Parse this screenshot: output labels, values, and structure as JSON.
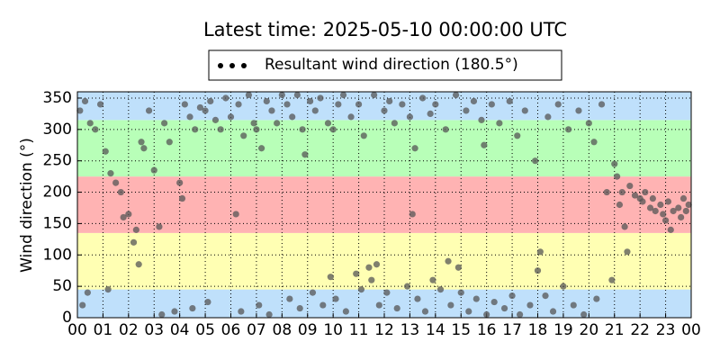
{
  "chart_data": {
    "type": "scatter",
    "title": "Latest time: 2025-05-10 00:00:00 UTC",
    "y_label": "Wind direction (°)",
    "xlim": [
      0,
      24
    ],
    "ylim": [
      0,
      360
    ],
    "xticks": [
      {
        "value": 0,
        "label": "00"
      },
      {
        "value": 1,
        "label": "01"
      },
      {
        "value": 2,
        "label": "02"
      },
      {
        "value": 3,
        "label": "03"
      },
      {
        "value": 4,
        "label": "04"
      },
      {
        "value": 5,
        "label": "05"
      },
      {
        "value": 6,
        "label": "06"
      },
      {
        "value": 7,
        "label": "07"
      },
      {
        "value": 8,
        "label": "08"
      },
      {
        "value": 9,
        "label": "09"
      },
      {
        "value": 10,
        "label": "10"
      },
      {
        "value": 11,
        "label": "11"
      },
      {
        "value": 12,
        "label": "12"
      },
      {
        "value": 13,
        "label": "13"
      },
      {
        "value": 14,
        "label": "14"
      },
      {
        "value": 15,
        "label": "15"
      },
      {
        "value": 16,
        "label": "16"
      },
      {
        "value": 17,
        "label": "17"
      },
      {
        "value": 18,
        "label": "18"
      },
      {
        "value": 19,
        "label": "19"
      },
      {
        "value": 20,
        "label": "20"
      },
      {
        "value": 21,
        "label": "21"
      },
      {
        "value": 22,
        "label": "22"
      },
      {
        "value": 23,
        "label": "23"
      },
      {
        "value": 24,
        "label": "00"
      }
    ],
    "yticks": [
      0,
      50,
      100,
      150,
      200,
      250,
      300,
      350
    ],
    "grid": true,
    "legend": "top",
    "bands": [
      {
        "range": [
          0,
          45
        ],
        "color": "#bfe0fb"
      },
      {
        "range": [
          45,
          135
        ],
        "color": "#ffffb3"
      },
      {
        "range": [
          135,
          225
        ],
        "color": "#ffb3b3"
      },
      {
        "range": [
          225,
          315
        ],
        "color": "#b8ffb8"
      },
      {
        "range": [
          315,
          360
        ],
        "color": "#bfe0fb"
      }
    ],
    "series": [
      {
        "name": "Resultant wind direction (180.5°)",
        "color": "#555555",
        "x": [
          0.1,
          0.3,
          0.5,
          0.2,
          0.4,
          0.7,
          0.9,
          1.1,
          1.3,
          1.5,
          1.2,
          1.7,
          1.8,
          2.0,
          2.2,
          2.3,
          2.5,
          2.6,
          2.4,
          2.8,
          3.0,
          3.2,
          3.4,
          3.3,
          3.6,
          3.8,
          4.0,
          4.1,
          4.2,
          4.4,
          4.6,
          4.8,
          4.5,
          5.0,
          5.2,
          5.4,
          5.1,
          5.6,
          5.8,
          6.0,
          6.2,
          6.3,
          6.5,
          6.4,
          6.7,
          6.9,
          7.0,
          7.2,
          7.1,
          7.4,
          7.6,
          7.8,
          7.5,
          8.0,
          8.2,
          8.3,
          8.4,
          8.6,
          8.8,
          8.7,
          8.9,
          9.1,
          9.3,
          9.2,
          9.5,
          9.6,
          9.8,
          9.9,
          10.0,
          10.2,
          10.1,
          10.4,
          10.5,
          10.7,
          10.9,
          11.0,
          11.2,
          11.1,
          11.4,
          11.5,
          11.6,
          11.7,
          11.8,
          12.0,
          12.2,
          12.1,
          12.4,
          12.5,
          12.7,
          12.9,
          13.0,
          13.1,
          13.2,
          13.3,
          13.5,
          13.6,
          13.8,
          13.9,
          14.0,
          14.2,
          14.4,
          14.5,
          14.6,
          14.8,
          14.9,
          15.0,
          15.2,
          15.3,
          15.5,
          15.6,
          15.8,
          15.9,
          16.0,
          16.2,
          16.3,
          16.5,
          16.7,
          16.9,
          17.0,
          17.2,
          17.3,
          17.5,
          17.7,
          17.9,
          18.0,
          18.1,
          18.3,
          18.4,
          18.6,
          18.8,
          19.0,
          19.2,
          19.4,
          19.6,
          19.8,
          20.0,
          20.2,
          20.3,
          20.5,
          20.7,
          20.9,
          21.0,
          21.1,
          21.2,
          21.3,
          21.4,
          21.5,
          21.6,
          21.8,
          22.0,
          22.1,
          22.2,
          22.4,
          22.5,
          22.6,
          22.8,
          22.9,
          23.0,
          23.1,
          23.2,
          23.3,
          23.5,
          23.6,
          23.7,
          23.8,
          23.9
        ],
        "values": [
          330,
          345,
          310,
          20,
          40,
          300,
          340,
          265,
          230,
          215,
          45,
          200,
          160,
          165,
          120,
          140,
          280,
          270,
          85,
          330,
          235,
          145,
          310,
          5,
          280,
          10,
          215,
          190,
          340,
          320,
          300,
          335,
          15,
          330,
          345,
          315,
          25,
          300,
          350,
          320,
          165,
          340,
          290,
          10,
          355,
          310,
          300,
          270,
          20,
          345,
          330,
          310,
          5,
          355,
          340,
          30,
          320,
          355,
          300,
          15,
          260,
          345,
          330,
          40,
          350,
          20,
          310,
          65,
          300,
          340,
          30,
          355,
          10,
          320,
          70,
          340,
          290,
          45,
          80,
          60,
          355,
          85,
          20,
          330,
          345,
          40,
          310,
          15,
          340,
          50,
          320,
          165,
          270,
          30,
          350,
          10,
          325,
          60,
          340,
          45,
          300,
          90,
          20,
          355,
          80,
          40,
          330,
          10,
          345,
          30,
          315,
          275,
          5,
          340,
          25,
          310,
          15,
          345,
          35,
          290,
          5,
          330,
          20,
          250,
          75,
          105,
          35,
          320,
          10,
          340,
          50,
          300,
          20,
          330,
          5,
          310,
          280,
          30,
          340,
          200,
          60,
          245,
          225,
          180,
          200,
          145,
          105,
          210,
          195,
          190,
          185,
          200,
          175,
          190,
          170,
          180,
          165,
          155,
          185,
          140,
          170,
          175,
          160,
          190,
          170,
          180
        ]
      }
    ]
  }
}
